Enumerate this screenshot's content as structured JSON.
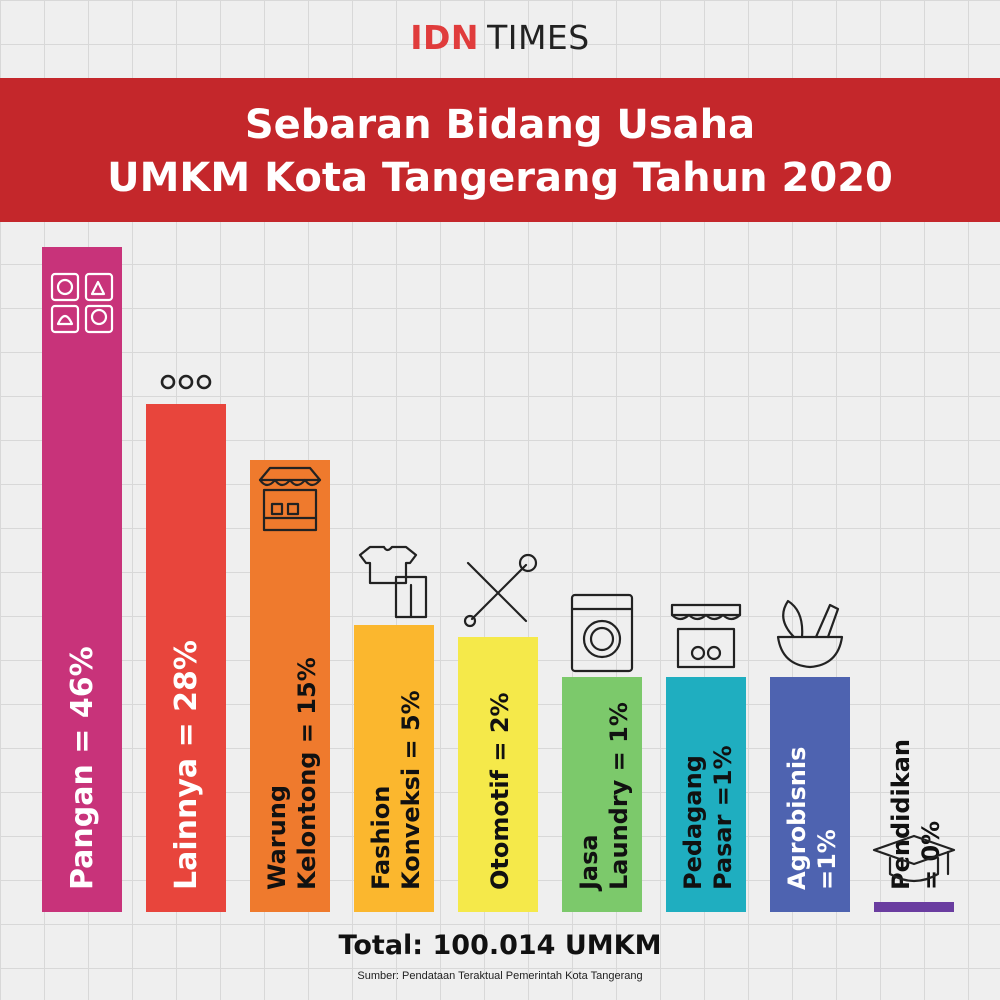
{
  "brand": {
    "idn": "IDN",
    "times": "TIMES"
  },
  "header": {
    "title_line_1": "Sebaran Bidang Usaha",
    "title_line_2": "UMKM Kota Tangerang Tahun 2020"
  },
  "footer": {
    "total": "Total: 100.014 UMKM",
    "source": "Sumber: Pendataan Teraktual Pemerintah Kota Tangerang"
  },
  "chart_data": {
    "type": "bar",
    "orientation": "vertical",
    "title": "Sebaran Bidang Usaha UMKM Kota Tangerang Tahun 2020",
    "categories": [
      "Pangan",
      "Lainnya",
      "Warung Kelontong",
      "Fashion Konveksi",
      "Otomotif",
      "Jasa Laundry",
      "Pedagang Pasar",
      "Agrobisnis",
      "Pendidikan"
    ],
    "values": [
      46,
      28,
      15,
      5,
      2,
      1,
      1,
      1,
      0
    ],
    "unit": "%",
    "labels": [
      [
        "Pangan = 46%"
      ],
      [
        "Lainnya = 28%"
      ],
      [
        "Warung",
        "Kelontong = 15%"
      ],
      [
        "Fashion",
        "Konveksi = 5%"
      ],
      [
        "Otomotif = 2%"
      ],
      [
        "Jasa",
        "Laundry = 1%"
      ],
      [
        "Pedagang",
        "Pasar =1%"
      ],
      [
        "Agrobisnis",
        "=1%"
      ],
      [
        "Pendidikan",
        "= 0%"
      ]
    ],
    "colors": [
      "#c8337a",
      "#e8453c",
      "#ef7a2d",
      "#fbb72e",
      "#f5e94a",
      "#7cc96b",
      "#1faec0",
      "#4e63b0",
      "#6a3da0"
    ],
    "icons": [
      "food-icon",
      "ellipsis-icon",
      "shop-stall-icon",
      "clothing-icon",
      "tools-icon",
      "washing-machine-icon",
      "market-stall-icon",
      "vegetable-bowl-icon",
      "graduation-cap-icon"
    ],
    "label_colors": [
      "#ffffff",
      "#ffffff",
      "#111111",
      "#111111",
      "#111111",
      "#111111",
      "#111111",
      "#ffffff",
      "#111111"
    ],
    "grid": true,
    "legend": "none"
  }
}
